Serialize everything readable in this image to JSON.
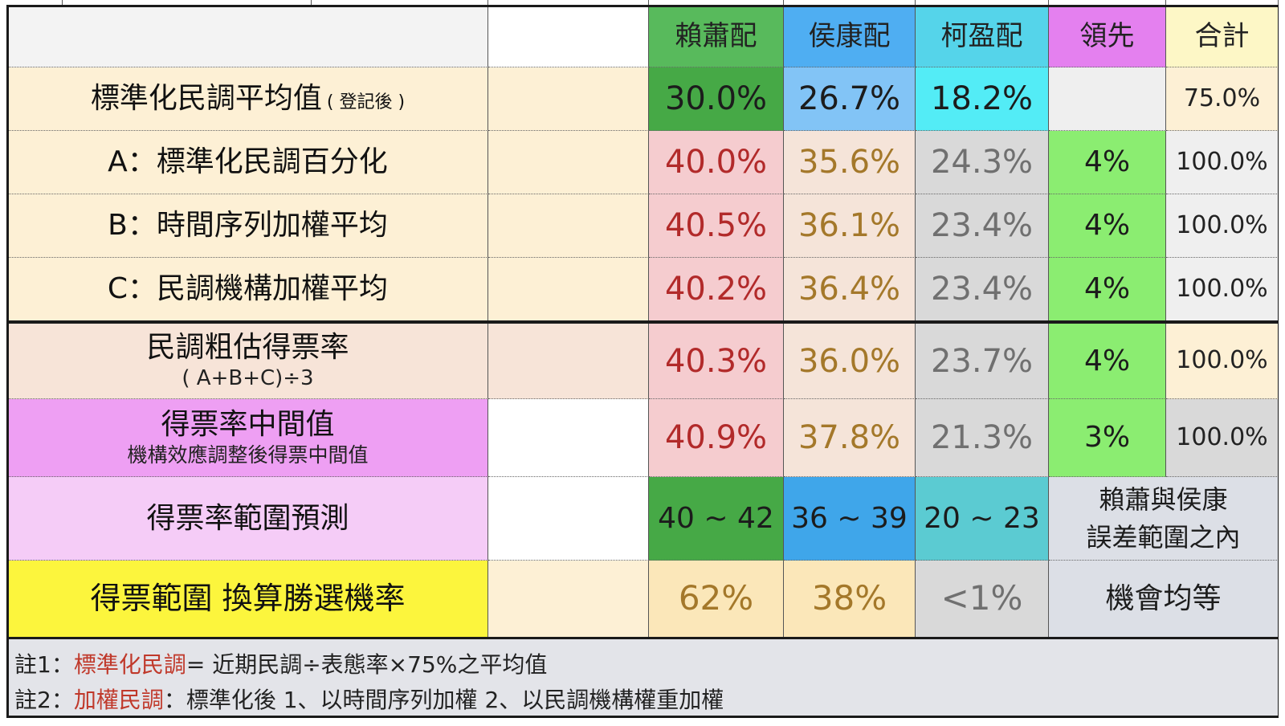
{
  "header": {
    "col1": "賴蕭配",
    "col2": "侯康配",
    "col3": "柯盈配",
    "lead": "領先",
    "total": "合計"
  },
  "rows": {
    "standardized": {
      "label": "標準化民調平均值",
      "label_suffix": "( 登記後 )",
      "v1": "30.0%",
      "v2": "26.7%",
      "v3": "18.2%",
      "lead": "",
      "total": "75.0%"
    },
    "a": {
      "label": "A：標準化民調百分化",
      "v1": "40.0%",
      "v2": "35.6%",
      "v3": "24.3%",
      "lead": "4%",
      "total": "100.0%"
    },
    "b": {
      "label": "B：時間序列加權平均",
      "v1": "40.5%",
      "v2": "36.1%",
      "v3": "23.4%",
      "lead": "4%",
      "total": "100.0%"
    },
    "c": {
      "label": "C：民調機構加權平均",
      "v1": "40.2%",
      "v2": "36.4%",
      "v3": "23.4%",
      "lead": "4%",
      "total": "100.0%"
    },
    "estimate": {
      "label": "民調粗估得票率",
      "sub": "( A+B+C)÷3",
      "v1": "40.3%",
      "v2": "36.0%",
      "v3": "23.7%",
      "lead": "4%",
      "total": "100.0%"
    },
    "median": {
      "label": "得票率中間值",
      "sub": "機構效應調整後得票中間值",
      "v1": "40.9%",
      "v2": "37.8%",
      "v3": "21.3%",
      "lead": "3%",
      "total": "100.0%"
    },
    "range": {
      "label": "得票率範圍預測",
      "v1": "40 ~ 42",
      "v2": "36 ~ 39",
      "v3": "20 ~ 23",
      "note_line1": "賴蕭與侯康",
      "note_line2": "誤差範圍之內"
    },
    "probability": {
      "label": "得票範圍 換算勝選機率",
      "v1": "62%",
      "v2": "38%",
      "v3": "<1%",
      "note": "機會均等"
    }
  },
  "notes": {
    "n1_prefix": "註1：",
    "n1_highlight": "標準化民調",
    "n1_rest": "= 近期民調÷表態率×75%之平均值",
    "n2_prefix": "註2：",
    "n2_highlight": "加權民調",
    "n2_rest": "：標準化後  1、以時間序列加權   2、以民調機構權重加權"
  },
  "colors": {
    "label_bg": "#fdf0d5",
    "estimate_bg": "#f7e4d8",
    "median_bg": "#ee9ff3",
    "range_bg": "#f5ccf7",
    "prob_bg": "#fcf53d",
    "col1_header": "#58ba5c",
    "col2_header": "#4faef2",
    "col3_header": "#55d4ea",
    "lead_header": "#e480ef",
    "total_header": "#fdf7c6",
    "val1_bg": "#f5cccf",
    "val2_bg": "#f5e4d9",
    "val3_bg": "#d9d9d9",
    "lead_bg": "#8bed71",
    "total_bg": "#efefef",
    "notes_bg": "#e3e4e9"
  }
}
